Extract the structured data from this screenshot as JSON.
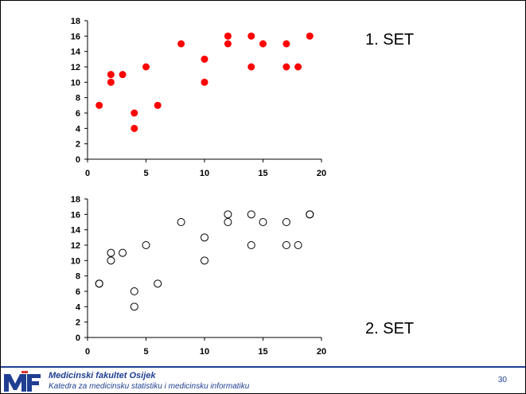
{
  "chart_data": [
    {
      "type": "scatter",
      "title": "",
      "xlabel": "",
      "ylabel": "",
      "xlim": [
        0,
        20
      ],
      "ylim": [
        0,
        18
      ],
      "x_ticks": [
        0,
        5,
        10,
        15,
        20
      ],
      "y_ticks": [
        0,
        2,
        4,
        6,
        8,
        10,
        12,
        14,
        16,
        18
      ],
      "marker": "filled-circle",
      "marker_color": "#ff0000",
      "grid": false,
      "series": [
        {
          "points": [
            [
              1,
              7
            ],
            [
              2,
              10
            ],
            [
              2,
              11
            ],
            [
              3,
              11
            ],
            [
              4,
              6
            ],
            [
              4,
              4
            ],
            [
              5,
              12
            ],
            [
              6,
              7
            ],
            [
              8,
              15
            ],
            [
              10,
              13
            ],
            [
              10,
              10
            ],
            [
              12,
              16
            ],
            [
              12,
              15
            ],
            [
              14,
              16
            ],
            [
              14,
              12
            ],
            [
              15,
              15
            ],
            [
              17,
              15
            ],
            [
              17,
              12
            ],
            [
              18,
              12
            ],
            [
              19,
              16
            ]
          ]
        }
      ]
    },
    {
      "type": "scatter",
      "title": "",
      "xlabel": "",
      "ylabel": "",
      "xlim": [
        0,
        20
      ],
      "ylim": [
        0,
        18
      ],
      "x_ticks": [
        0,
        5,
        10,
        15,
        20
      ],
      "y_ticks": [
        0,
        2,
        4,
        6,
        8,
        10,
        12,
        14,
        16,
        18
      ],
      "marker": "hollow-circle",
      "marker_color": "#000000",
      "grid": false,
      "series": [
        {
          "points": [
            [
              1,
              7
            ],
            [
              1,
              7
            ],
            [
              2,
              10
            ],
            [
              2,
              11
            ],
            [
              3,
              11
            ],
            [
              4,
              6
            ],
            [
              4,
              4
            ],
            [
              5,
              12
            ],
            [
              6,
              7
            ],
            [
              8,
              15
            ],
            [
              10,
              13
            ],
            [
              10,
              10
            ],
            [
              12,
              16
            ],
            [
              12,
              15
            ],
            [
              14,
              16
            ],
            [
              14,
              12
            ],
            [
              15,
              15
            ],
            [
              17,
              15
            ],
            [
              17,
              12
            ],
            [
              18,
              12
            ],
            [
              19,
              16
            ],
            [
              19,
              16
            ]
          ]
        }
      ]
    }
  ],
  "labels": {
    "set1": "1. SET",
    "set2": "2. SET"
  },
  "footer": {
    "institution": "Medicinski fakultet Osijek",
    "department": "Katedra za medicinsku statistiku i medicinsku informatiku",
    "page": "30",
    "logo_text": "MF",
    "brand_color": "#1f3e92"
  }
}
